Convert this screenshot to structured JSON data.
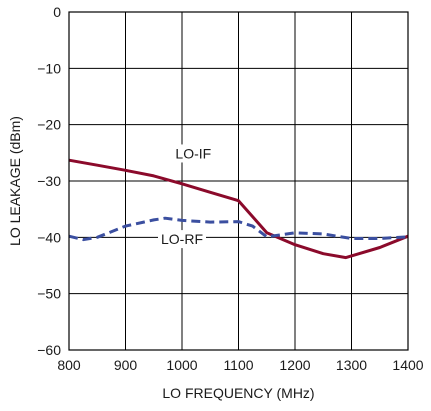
{
  "chart_data": {
    "type": "line",
    "title": "",
    "xlabel": "LO FREQUENCY (MHz)",
    "ylabel": "LO LEAKAGE (dBm)",
    "xlim": [
      800,
      1400
    ],
    "ylim": [
      -60,
      0
    ],
    "x_ticks": [
      800,
      900,
      1000,
      1100,
      1200,
      1300,
      1400
    ],
    "y_ticks": [
      0,
      -10,
      -20,
      -30,
      -40,
      -50,
      -60
    ],
    "x_tick_labels": [
      "800",
      "900",
      "1000",
      "1100",
      "1200",
      "1300",
      "1400"
    ],
    "y_tick_labels": [
      "0",
      "−10",
      "−20",
      "−30",
      "−40",
      "−50",
      "−60"
    ],
    "grid": true,
    "series": [
      {
        "name": "LO-IF",
        "color": "#8b0a2b",
        "style": "solid",
        "x": [
          800,
          850,
          900,
          950,
          1000,
          1050,
          1100,
          1150,
          1200,
          1250,
          1290,
          1350,
          1400
        ],
        "y": [
          -26.3,
          -27.2,
          -28.1,
          -29.1,
          -30.5,
          -32.0,
          -33.5,
          -39.2,
          -41.3,
          -42.9,
          -43.6,
          -41.8,
          -39.8
        ]
      },
      {
        "name": "LO-RF",
        "color": "#3b4fa0",
        "style": "dashed",
        "x": [
          800,
          825,
          850,
          900,
          950,
          970,
          1000,
          1050,
          1100,
          1125,
          1150,
          1200,
          1250,
          1300,
          1350,
          1400
        ],
        "y": [
          -39.8,
          -40.4,
          -40.0,
          -38.0,
          -36.9,
          -36.6,
          -37.0,
          -37.3,
          -37.2,
          -38.0,
          -39.9,
          -39.2,
          -39.4,
          -40.2,
          -40.2,
          -39.9
        ]
      }
    ],
    "annotations": [
      {
        "text": "LO-IF",
        "x": 1020,
        "y": -26
      },
      {
        "text": "LO-RF",
        "x": 1000,
        "y": -41.2
      }
    ]
  }
}
